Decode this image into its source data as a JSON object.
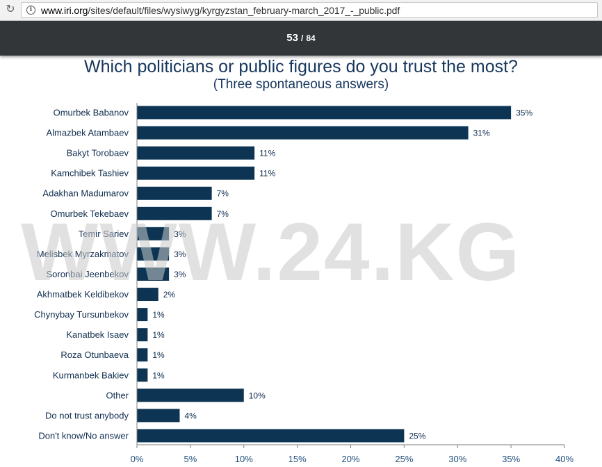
{
  "browser": {
    "url_prefix": "www.iri.org",
    "url_path": "/sites/default/files/wysiwyg/kyrgyzstan_february-march_2017_-_public.pdf",
    "reload_icon": "reload-icon",
    "info_icon": "info-icon"
  },
  "pdf_viewer": {
    "current_page": "53",
    "separator": "/",
    "total_pages": "84"
  },
  "watermark": "WWW.24.KG",
  "colors": {
    "bar": "#0d3553",
    "title": "#16365c",
    "toolbar": "#323639"
  },
  "chart_data": {
    "type": "bar",
    "orientation": "horizontal",
    "title": "Which politicians or public figures do you trust the most?",
    "subtitle": "(Three spontaneous answers)",
    "categories": [
      "Omurbek Babanov",
      "Almazbek Atambaev",
      "Bakyt Torobaev",
      "Kamchibek Tashiev",
      "Adakhan Madumarov",
      "Omurbek Tekebaev",
      "Temir Sariev",
      "Melisbek Myrzakmatov",
      "Soronbai Jeenbekov",
      "Akhmatbek Keldibekov",
      "Chynybay Tursunbekov",
      "Kanatbek Isaev",
      "Roza Otunbaeva",
      "Kurmanbek Bakiev",
      "Other",
      "Do not trust anybody",
      "Don't know/No answer"
    ],
    "values": [
      35,
      31,
      11,
      11,
      7,
      7,
      3,
      3,
      3,
      2,
      1,
      1,
      1,
      1,
      10,
      4,
      25
    ],
    "value_labels": [
      "35%",
      "31%",
      "11%",
      "11%",
      "7%",
      "7%",
      "3%",
      "3%",
      "3%",
      "2%",
      "1%",
      "1%",
      "1%",
      "1%",
      "10%",
      "4%",
      "25%"
    ],
    "xlim": [
      0,
      40
    ],
    "x_ticks": [
      "0%",
      "5%",
      "10%",
      "15%",
      "20%",
      "25%",
      "30%",
      "35%",
      "40%"
    ],
    "grid": false
  }
}
